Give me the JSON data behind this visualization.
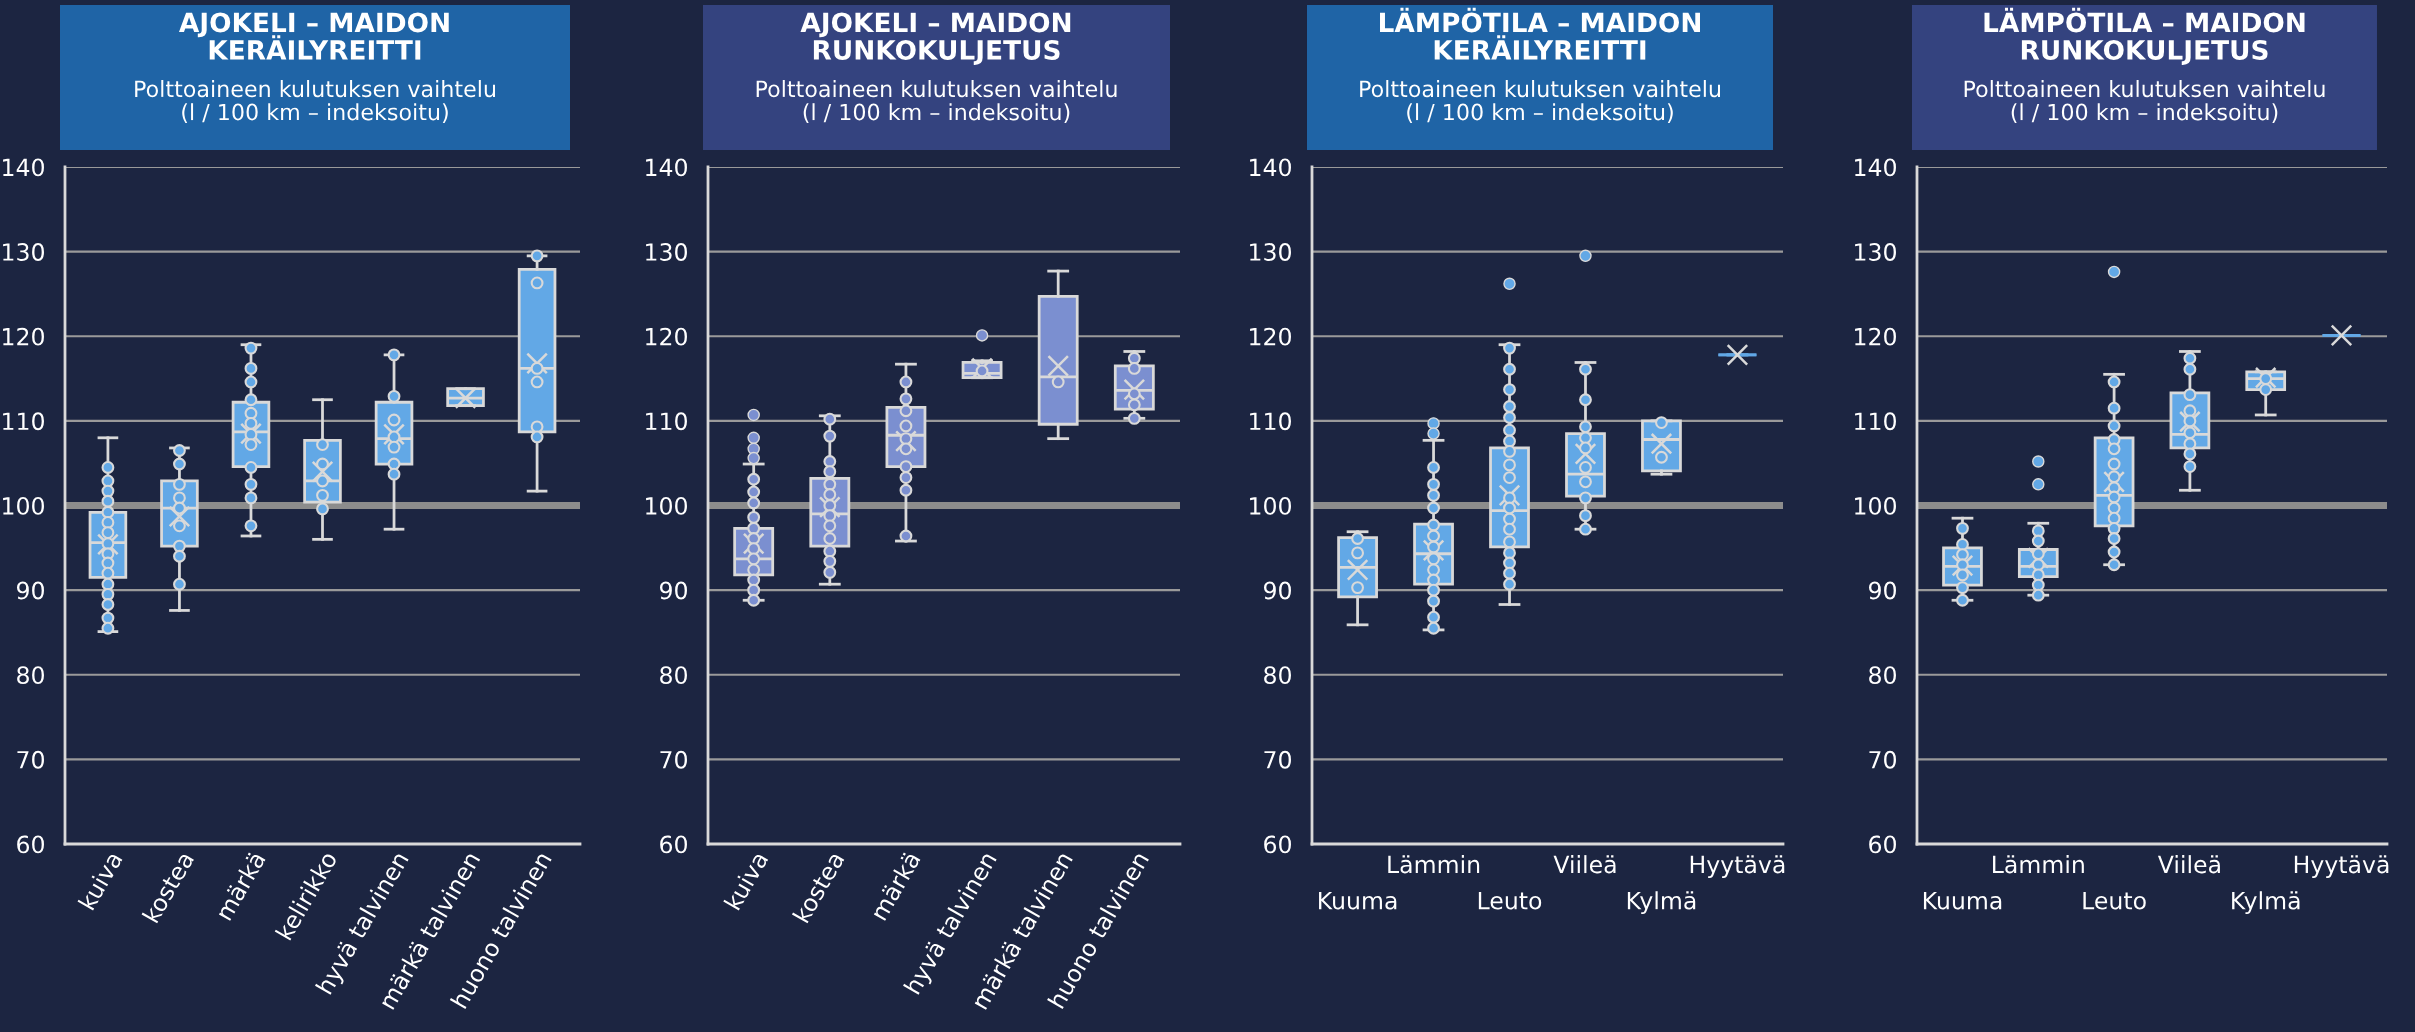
{
  "chart_data": [
    {
      "type": "box",
      "title": "AJOKELI – MAIDON\nKERÄILYREITTI",
      "subtitle": "Polttoaineen kulutuksen vaihtelu\n(l / 100 km – indeksoitu)",
      "categories": [
        "kuiva",
        "kostea",
        "märkä",
        "kelirikko",
        "hyvä talvinen",
        "märkä talvinen",
        "huono talvinen"
      ],
      "ylim": [
        60,
        140
      ],
      "yticks": [
        60,
        70,
        80,
        90,
        100,
        110,
        120,
        130,
        140
      ],
      "grid": "y",
      "ref_lines": [
        {
          "axis": "y",
          "value": 100,
          "color": "#8c8c8c"
        }
      ],
      "series": [
        {
          "color": "#62a8e6",
          "boxes": [
            {
              "low": 85.1,
              "q1": 91.5,
              "median": 95.6,
              "q3": 99.2,
              "high": 108.0,
              "mean": 95.4
            },
            {
              "low": 87.6,
              "q1": 95.2,
              "median": 99.7,
              "q3": 102.9,
              "high": 106.8,
              "mean": 98.7
            },
            {
              "low": 96.4,
              "q1": 104.6,
              "median": 108.7,
              "q3": 112.2,
              "high": 119.0,
              "mean": 108.5
            },
            {
              "low": 96.0,
              "q1": 100.4,
              "median": 102.9,
              "q3": 107.7,
              "high": 112.5,
              "mean": 104.0
            },
            {
              "low": 97.2,
              "q1": 104.9,
              "median": 107.9,
              "q3": 112.2,
              "high": 117.8,
              "mean": 108.4
            },
            {
              "low": 111.8,
              "q1": 111.8,
              "median": 112.7,
              "q3": 113.8,
              "high": 113.8,
              "mean": 112.7
            },
            {
              "low": 101.7,
              "q1": 108.7,
              "median": 116.2,
              "q3": 127.9,
              "high": 129.5,
              "mean": 116.8
            }
          ]
        },
        {
          "type": "scatter",
          "color": "#62a8e6",
          "marker": "circle",
          "x": [
            "kuiva",
            "kuiva",
            "kuiva",
            "kuiva",
            "kuiva",
            "kuiva",
            "kuiva",
            "kuiva",
            "kuiva",
            "kuiva",
            "kuiva",
            "kuiva",
            "kuiva",
            "kuiva",
            "kuiva",
            "kuiva",
            "kostea",
            "kostea",
            "kostea",
            "kostea",
            "kostea",
            "kostea",
            "kostea",
            "kostea",
            "kostea",
            "märkä",
            "märkä",
            "märkä",
            "märkä",
            "märkä",
            "märkä",
            "märkä",
            "märkä",
            "märkä",
            "märkä",
            "märkä",
            "märkä",
            "kelirikko",
            "kelirikko",
            "kelirikko",
            "kelirikko",
            "kelirikko",
            "hyvä talvinen",
            "hyvä talvinen",
            "hyvä talvinen",
            "hyvä talvinen",
            "hyvä talvinen",
            "hyvä talvinen",
            "hyvä talvinen",
            "huono talvinen",
            "huono talvinen",
            "huono talvinen",
            "huono talvinen",
            "huono talvinen",
            "huono talvinen"
          ],
          "values": [
            104.5,
            102.9,
            101.7,
            100.5,
            99.2,
            98.0,
            96.8,
            95.5,
            94.3,
            93.2,
            92.0,
            90.7,
            89.5,
            88.3,
            86.7,
            85.5,
            106.5,
            104.9,
            102.5,
            100.9,
            99.7,
            97.6,
            95.2,
            94.0,
            90.7,
            118.6,
            116.2,
            114.6,
            112.5,
            110.9,
            109.7,
            108.4,
            107.2,
            104.5,
            102.5,
            100.9,
            97.6,
            107.2,
            104.9,
            102.9,
            101.2,
            99.6,
            117.8,
            112.9,
            110.1,
            108.1,
            106.9,
            104.9,
            103.7,
            129.5,
            126.3,
            116.2,
            114.6,
            109.3,
            108.1
          ]
        }
      ]
    },
    {
      "type": "box",
      "title": "AJOKELI – MAIDON\nRUNKOKULJETUS",
      "subtitle": "Polttoaineen kulutuksen vaihtelu\n(l / 100 km – indeksoitu)",
      "categories": [
        "kuiva",
        "kostea",
        "märkä",
        "hyvä talvinen",
        "märkä talvinen",
        "huono talvinen"
      ],
      "ylim": [
        60,
        140
      ],
      "yticks": [
        60,
        70,
        80,
        90,
        100,
        110,
        120,
        130,
        140
      ],
      "grid": "y",
      "ref_lines": [
        {
          "axis": "y",
          "value": 100,
          "color": "#8c8c8c"
        }
      ],
      "series": [
        {
          "color": "#7b8fd0",
          "boxes": [
            {
              "low": 88.8,
              "q1": 91.8,
              "median": 93.7,
              "q3": 97.3,
              "high": 104.9,
              "mean": 95.5,
              "outliers": [
                110.7,
                108.0,
                106.7,
                105.6
              ]
            },
            {
              "low": 90.7,
              "q1": 95.2,
              "median": 99.0,
              "q3": 103.2,
              "high": 110.6,
              "mean": 99.8
            },
            {
              "low": 95.8,
              "q1": 104.6,
              "median": 108.3,
              "q3": 111.6,
              "high": 116.7,
              "mean": 107.6
            },
            {
              "low": 115.1,
              "q1": 115.1,
              "median": 115.6,
              "q3": 116.9,
              "high": 117.1,
              "mean": 116.2,
              "outliers": [
                120.1
              ]
            },
            {
              "low": 107.9,
              "q1": 109.6,
              "median": 115.2,
              "q3": 124.7,
              "high": 127.7,
              "mean": 116.5
            },
            {
              "low": 110.3,
              "q1": 111.4,
              "median": 113.6,
              "q3": 116.5,
              "high": 118.2,
              "mean": 113.7
            }
          ]
        },
        {
          "type": "scatter",
          "color": "#7b8fd0",
          "marker": "circle",
          "x": [
            "kuiva",
            "kuiva",
            "kuiva",
            "kuiva",
            "kuiva",
            "kuiva",
            "kuiva",
            "kuiva",
            "kuiva",
            "kuiva",
            "kuiva",
            "kuiva",
            "kostea",
            "kostea",
            "kostea",
            "kostea",
            "kostea",
            "kostea",
            "kostea",
            "kostea",
            "kostea",
            "kostea",
            "kostea",
            "kostea",
            "kostea",
            "märkä",
            "märkä",
            "märkä",
            "märkä",
            "märkä",
            "märkä",
            "märkä",
            "märkä",
            "märkä",
            "märkä",
            "hyvä talvinen",
            "märkä talvinen",
            "huono talvinen",
            "huono talvinen",
            "huono talvinen",
            "huono talvinen",
            "huono talvinen"
          ],
          "values": [
            103.1,
            101.6,
            100.3,
            98.6,
            97.3,
            96.1,
            94.9,
            93.7,
            92.4,
            91.2,
            90.0,
            88.8,
            110.2,
            108.2,
            105.2,
            104.0,
            102.5,
            101.3,
            100.0,
            98.8,
            97.6,
            96.1,
            94.6,
            93.4,
            92.1,
            114.6,
            112.6,
            111.2,
            109.4,
            107.9,
            106.7,
            104.6,
            103.3,
            101.8,
            96.4,
            115.9,
            114.6,
            117.4,
            116.2,
            113.2,
            111.9,
            110.3
          ]
        }
      ]
    },
    {
      "type": "box",
      "title": "LÄMPÖTILA – MAIDON\nKERÄILYREITTI",
      "subtitle": "Polttoaineen kulutuksen vaihtelu\n(l / 100 km – indeksoitu)",
      "categories": [
        "Kuuma",
        "Lämmin",
        "Leuto",
        "Viileä",
        "Kylmä",
        "Hyytävä"
      ],
      "ylim": [
        60,
        140
      ],
      "yticks": [
        60,
        70,
        80,
        90,
        100,
        110,
        120,
        130,
        140
      ],
      "grid": "y",
      "ref_lines": [
        {
          "axis": "y",
          "value": 100,
          "color": "#8c8c8c"
        }
      ],
      "series": [
        {
          "color": "#62a8e6",
          "boxes": [
            {
              "low": 85.9,
              "q1": 89.2,
              "median": 92.7,
              "q3": 96.2,
              "high": 96.9,
              "mean": 92.4
            },
            {
              "low": 85.3,
              "q1": 90.7,
              "median": 94.3,
              "q3": 97.8,
              "high": 107.7,
              "mean": 94.7,
              "outliers": [
                109.7,
                108.5
              ]
            },
            {
              "low": 88.3,
              "q1": 95.1,
              "median": 99.4,
              "q3": 106.8,
              "high": 119.0,
              "mean": 101.2,
              "outliers": [
                126.2
              ]
            },
            {
              "low": 97.2,
              "q1": 101.1,
              "median": 103.7,
              "q3": 108.5,
              "high": 116.9,
              "mean": 106.1,
              "outliers": [
                129.5
              ]
            },
            {
              "low": 103.7,
              "q1": 104.1,
              "median": 107.8,
              "q3": 110.0,
              "high": 110.0,
              "mean": 107.3
            },
            {
              "low": 117.8,
              "q1": 117.8,
              "median": 117.8,
              "q3": 117.8,
              "high": 117.8,
              "mean": 117.8
            }
          ]
        },
        {
          "type": "scatter",
          "color": "#62a8e6",
          "marker": "circle",
          "x": [
            "Kuuma",
            "Kuuma",
            "Kuuma",
            "Lämmin",
            "Lämmin",
            "Lämmin",
            "Lämmin",
            "Lämmin",
            "Lämmin",
            "Lämmin",
            "Lämmin",
            "Lämmin",
            "Lämmin",
            "Lämmin",
            "Lämmin",
            "Lämmin",
            "Lämmin",
            "Leuto",
            "Leuto",
            "Leuto",
            "Leuto",
            "Leuto",
            "Leuto",
            "Leuto",
            "Leuto",
            "Leuto",
            "Leuto",
            "Leuto",
            "Leuto",
            "Leuto",
            "Leuto",
            "Leuto",
            "Leuto",
            "Leuto",
            "Leuto",
            "Leuto",
            "Viileä",
            "Viileä",
            "Viileä",
            "Viileä",
            "Viileä",
            "Viileä",
            "Viileä",
            "Viileä",
            "Viileä",
            "Viileä",
            "Kylmä",
            "Kylmä"
          ],
          "values": [
            96.1,
            94.4,
            90.3,
            104.5,
            102.5,
            101.2,
            99.7,
            97.7,
            96.4,
            95.1,
            93.7,
            92.4,
            91.2,
            90.0,
            88.7,
            86.8,
            85.5,
            118.6,
            116.1,
            113.7,
            111.7,
            110.4,
            108.9,
            107.6,
            106.4,
            104.8,
            103.3,
            100.9,
            99.7,
            98.4,
            97.2,
            95.7,
            94.4,
            93.2,
            92.0,
            90.7,
            116.1,
            112.5,
            109.3,
            108.0,
            106.8,
            104.5,
            102.8,
            100.9,
            98.8,
            97.2,
            109.8,
            105.7
          ]
        }
      ]
    },
    {
      "type": "box",
      "title": "LÄMPÖTILA – MAIDON\nRUNKOKULJETUS",
      "subtitle": "Polttoaineen kulutuksen vaihtelu\n(l / 100 km – indeksoitu)",
      "categories": [
        "Kuuma",
        "Lämmin",
        "Leuto",
        "Viileä",
        "Kylmä",
        "Hyytävä"
      ],
      "ylim": [
        60,
        140
      ],
      "yticks": [
        60,
        70,
        80,
        90,
        100,
        110,
        120,
        130,
        140
      ],
      "grid": "y",
      "ref_lines": [
        {
          "axis": "y",
          "value": 100,
          "color": "#8c8c8c"
        }
      ],
      "series": [
        {
          "color": "#62a8e6",
          "boxes": [
            {
              "low": 88.8,
              "q1": 90.6,
              "median": 92.8,
              "q3": 95.0,
              "high": 98.5,
              "mean": 92.9
            },
            {
              "low": 89.4,
              "q1": 91.6,
              "median": 92.8,
              "q3": 94.8,
              "high": 97.9,
              "mean": 93.8,
              "outliers": [
                105.2,
                102.5
              ]
            },
            {
              "low": 93.0,
              "q1": 97.6,
              "median": 101.2,
              "q3": 108.0,
              "high": 115.5,
              "mean": 102.8,
              "outliers": [
                127.6
              ]
            },
            {
              "low": 101.8,
              "q1": 106.8,
              "median": 108.4,
              "q3": 113.3,
              "high": 118.2,
              "mean": 109.9
            },
            {
              "low": 110.7,
              "q1": 113.7,
              "median": 115.0,
              "q3": 115.8,
              "high": 115.8,
              "mean": 115.1
            },
            {
              "low": 120.1,
              "q1": 120.1,
              "median": 120.1,
              "q3": 120.1,
              "high": 120.1,
              "mean": 120.1
            }
          ]
        },
        {
          "type": "scatter",
          "color": "#62a8e6",
          "marker": "circle",
          "x": [
            "Kuuma",
            "Kuuma",
            "Kuuma",
            "Kuuma",
            "Kuuma",
            "Kuuma",
            "Kuuma",
            "Lämmin",
            "Lämmin",
            "Lämmin",
            "Lämmin",
            "Lämmin",
            "Lämmin",
            "Lämmin",
            "Leuto",
            "Leuto",
            "Leuto",
            "Leuto",
            "Leuto",
            "Leuto",
            "Leuto",
            "Leuto",
            "Leuto",
            "Leuto",
            "Leuto",
            "Leuto",
            "Leuto",
            "Leuto",
            "Leuto",
            "Viileä",
            "Viileä",
            "Viileä",
            "Viileä",
            "Viileä",
            "Viileä",
            "Viileä",
            "Viileä",
            "Viileä",
            "Kylmä",
            "Kylmä"
          ],
          "values": [
            97.3,
            95.4,
            94.2,
            93.0,
            91.8,
            90.3,
            88.8,
            97.0,
            95.8,
            94.3,
            93.0,
            91.8,
            90.6,
            89.4,
            114.6,
            111.5,
            109.4,
            107.8,
            106.7,
            104.9,
            103.4,
            102.1,
            101.0,
            99.7,
            98.5,
            97.3,
            96.1,
            94.5,
            93.0,
            117.4,
            116.1,
            113.1,
            111.2,
            110.0,
            108.6,
            107.3,
            106.1,
            104.6,
            115.0,
            113.7
          ]
        }
      ]
    }
  ]
}
